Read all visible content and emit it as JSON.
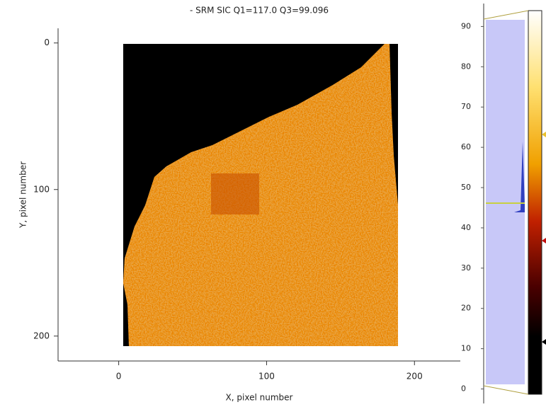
{
  "chart_data": [
    {
      "type": "image",
      "title": "- SRM SIC Q1=117.0 Q3=99.096",
      "xlabel": "X, pixel number",
      "ylabel": "Y, pixel number",
      "xlim": [
        -41,
        231
      ],
      "xticks": [
        0,
        100,
        200
      ],
      "ylim": [
        -10,
        217
      ],
      "yticks": [
        0,
        100,
        200
      ],
      "y_inverted": true
    },
    {
      "type": "colorbar",
      "ylim": [
        -3.6,
        95.7
      ],
      "yticks": [
        0,
        10,
        20,
        30,
        40,
        50,
        60,
        70,
        80,
        90
      ]
    }
  ]
}
